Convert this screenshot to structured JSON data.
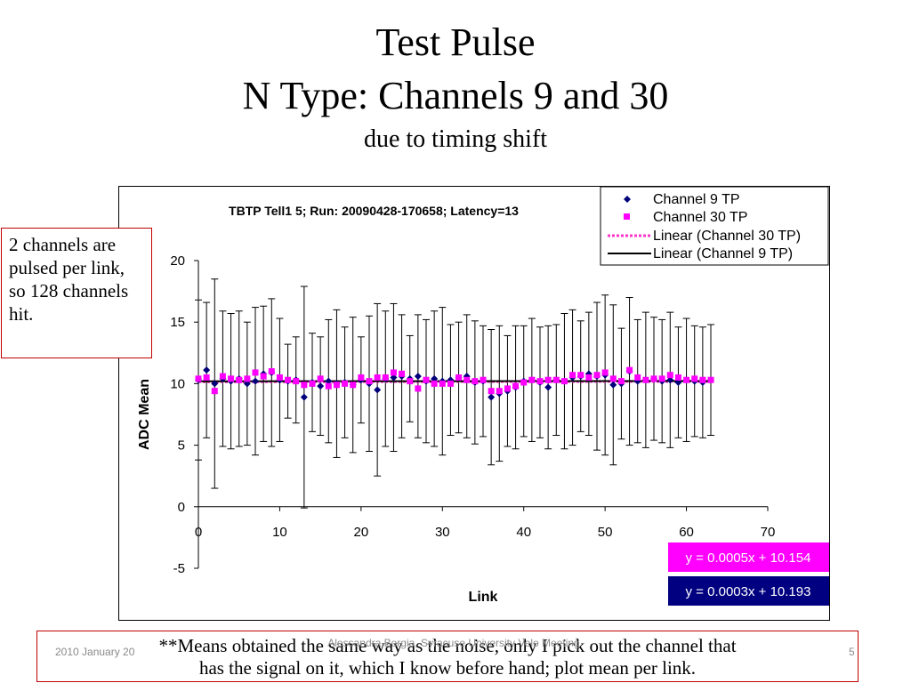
{
  "slide": {
    "title_line1": "Test Pulse",
    "title_line2": "N Type: Channels 9 and 30",
    "subtitle": "due to timing shift",
    "side_note": "2 channels are pulsed per link, so 128 channels hit.",
    "bottom_note_line1": "**Means obtained the same way as the noise, only I pick out the channel that",
    "bottom_note_line2": "has the signal on it, which I know before hand;  plot mean per link.",
    "footer_date": "2010 January 20",
    "footer_center": "Alessandra Borgia, Syracuse University Velo Meeting",
    "page_number": "5"
  },
  "chart_data": {
    "type": "scatter",
    "title": "TBTP Tell1 5; Run: 20090428-170658; Latency=13",
    "xlabel": "Link",
    "ylabel": "ADC Mean",
    "xlim": [
      0,
      70
    ],
    "ylim": [
      -5,
      20
    ],
    "xticks": [
      0,
      10,
      20,
      30,
      40,
      50,
      60,
      70
    ],
    "yticks": [
      -5,
      0,
      5,
      10,
      15,
      20
    ],
    "grid": false,
    "legend_position": "top-right",
    "colors": {
      "ch9": "#00007a",
      "ch30": "#ff00ff",
      "fit9": "#000000",
      "fit30": "#ff33cc",
      "eq30_bg": "#ff00ff",
      "eq9_bg": "#000080"
    },
    "series": [
      {
        "name": "Channel 9 TP",
        "marker": "diamond",
        "color": "#00007a",
        "x": [
          0,
          1,
          2,
          3,
          4,
          5,
          6,
          7,
          8,
          9,
          10,
          11,
          12,
          13,
          14,
          15,
          16,
          17,
          18,
          19,
          20,
          21,
          22,
          23,
          24,
          25,
          26,
          27,
          28,
          29,
          30,
          31,
          32,
          33,
          34,
          35,
          36,
          37,
          38,
          39,
          40,
          41,
          42,
          43,
          44,
          45,
          46,
          47,
          48,
          49,
          50,
          51,
          52,
          53,
          54,
          55,
          56,
          57,
          58,
          59,
          60,
          61,
          62,
          63
        ],
        "y": [
          10.3,
          11.1,
          10.0,
          10.4,
          10.2,
          10.4,
          10.0,
          10.2,
          10.8,
          10.9,
          10.3,
          10.2,
          10.3,
          8.9,
          10.1,
          9.8,
          10.2,
          10.0,
          10.1,
          9.9,
          10.3,
          10.0,
          9.5,
          10.4,
          10.5,
          10.6,
          10.4,
          10.6,
          10.2,
          10.4,
          10.2,
          10.3,
          10.5,
          10.6,
          10.1,
          10.2,
          8.9,
          9.2,
          9.4,
          9.7,
          10.2,
          10.3,
          10.1,
          9.7,
          10.3,
          10.2,
          10.5,
          10.6,
          10.8,
          10.6,
          10.7,
          9.9,
          10.0,
          11.0,
          10.2,
          10.3,
          10.4,
          10.2,
          10.3,
          10.1,
          10.3,
          10.2,
          10.1,
          10.3
        ],
        "err": [
          6.5,
          5.5,
          8.5,
          5.5,
          5.5,
          5.5,
          5.0,
          6.0,
          5.5,
          6.0,
          5.0,
          3.0,
          3.5,
          9.0,
          4.0,
          4.0,
          5.0,
          6.0,
          4.5,
          5.5,
          3.5,
          5.5,
          7.0,
          5.5,
          6.0,
          5.0,
          3.5,
          5.0,
          5.0,
          5.5,
          6.0,
          4.5,
          4.5,
          5.0,
          5.0,
          4.5,
          5.5,
          5.5,
          4.5,
          5.0,
          4.5,
          5.0,
          4.5,
          5.0,
          4.5,
          5.5,
          5.5,
          4.5,
          5.0,
          6.0,
          6.5,
          6.5,
          4.5,
          6.0,
          5.0,
          5.5,
          5.0,
          5.0,
          5.5,
          4.5,
          5.0,
          4.5,
          4.5,
          4.5
        ]
      },
      {
        "name": "Channel 30 TP",
        "marker": "square",
        "color": "#ff00ff",
        "x": [
          0,
          1,
          2,
          3,
          4,
          5,
          6,
          7,
          8,
          9,
          10,
          11,
          12,
          13,
          14,
          15,
          16,
          17,
          18,
          19,
          20,
          21,
          22,
          23,
          24,
          25,
          26,
          27,
          28,
          29,
          30,
          31,
          32,
          33,
          34,
          35,
          36,
          37,
          38,
          39,
          40,
          41,
          42,
          43,
          44,
          45,
          46,
          47,
          48,
          49,
          50,
          51,
          52,
          53,
          54,
          55,
          56,
          57,
          58,
          59,
          60,
          61,
          62,
          63
        ],
        "y": [
          10.4,
          10.5,
          9.4,
          10.6,
          10.4,
          10.3,
          10.4,
          10.9,
          10.6,
          11.0,
          10.5,
          10.3,
          10.2,
          9.9,
          10.0,
          10.4,
          9.8,
          9.9,
          10.0,
          9.9,
          10.5,
          10.2,
          10.5,
          10.5,
          10.9,
          10.8,
          10.2,
          9.6,
          10.3,
          10.0,
          10.0,
          10.0,
          10.5,
          10.3,
          10.2,
          10.3,
          9.4,
          9.4,
          9.6,
          9.8,
          10.1,
          10.3,
          10.2,
          10.3,
          10.3,
          10.2,
          10.7,
          10.7,
          10.5,
          10.7,
          10.9,
          10.4,
          10.2,
          11.1,
          10.5,
          10.3,
          10.4,
          10.4,
          10.7,
          10.5,
          10.3,
          10.4,
          10.3,
          10.3
        ],
        "err": [
          5.0,
          5.5,
          4.5,
          5.0,
          5.0,
          5.0,
          4.5,
          5.5,
          5.0,
          5.0,
          4.0,
          3.0,
          3.5,
          5.0,
          4.0,
          4.0,
          5.0,
          6.0,
          4.5,
          5.0,
          3.5,
          5.0,
          5.0,
          5.0,
          6.0,
          5.0,
          3.5,
          5.0,
          5.0,
          5.5,
          6.0,
          4.5,
          4.5,
          5.0,
          5.0,
          4.5,
          5.0,
          5.0,
          4.5,
          5.0,
          4.5,
          5.0,
          4.5,
          5.0,
          4.5,
          5.0,
          5.0,
          4.5,
          5.0,
          5.5,
          6.0,
          6.0,
          4.5,
          5.5,
          5.0,
          5.0,
          5.0,
          5.0,
          5.5,
          4.5,
          5.0,
          4.5,
          4.5,
          4.5
        ]
      }
    ],
    "fits": [
      {
        "name": "Linear (Channel 30 TP)",
        "slope": 0.0005,
        "intercept": 10.154,
        "style": "dashed",
        "color": "#ff33cc",
        "equation": "y = 0.0005x + 10.154"
      },
      {
        "name": "Linear (Channel 9 TP)",
        "slope": 0.0003,
        "intercept": 10.193,
        "style": "solid",
        "color": "#000000",
        "equation": "y = 0.0003x + 10.193"
      }
    ]
  }
}
